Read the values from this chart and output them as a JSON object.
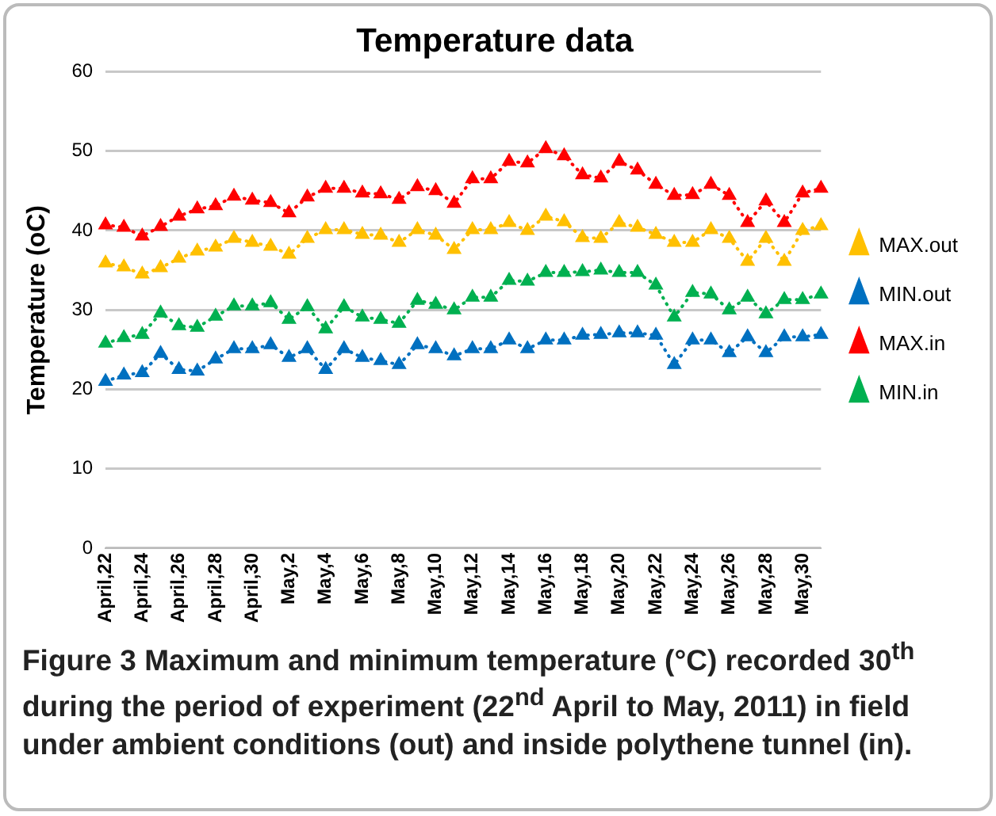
{
  "chart_data": {
    "type": "line",
    "title": "Temperature data",
    "ylabel": "Temperature (oC)",
    "categories": [
      "April,22",
      null,
      "April,24",
      null,
      "April,26",
      null,
      "April,28",
      null,
      "April,30",
      null,
      "May,2",
      null,
      "May,4",
      null,
      "May,6",
      null,
      "May,8",
      null,
      "May,10",
      null,
      "May,12",
      null,
      "May,14",
      null,
      "May,16",
      null,
      "May,18",
      null,
      "May,20",
      null,
      "May,22",
      null,
      "May,24",
      null,
      "May,26",
      null,
      "May,28",
      null,
      "May,30",
      null
    ],
    "series": [
      {
        "name": "MAX.out",
        "color": "#ffc000",
        "values": [
          35.9,
          35.4,
          34.5,
          35.3,
          36.5,
          37.4,
          37.9,
          39,
          38.5,
          38,
          37,
          39,
          40.1,
          40.1,
          39.5,
          39.4,
          38.5,
          40.1,
          39.4,
          37.6,
          40.1,
          40.1,
          41,
          40,
          41.8,
          41.1,
          39.1,
          39,
          41,
          40.4,
          39.5,
          38.5,
          38.5,
          40.1,
          39,
          36.1,
          39,
          36.1,
          40,
          40.6
        ]
      },
      {
        "name": "MIN.out",
        "color": "#0070c0",
        "values": [
          21,
          21.8,
          22.1,
          24.5,
          22.5,
          22.3,
          23.8,
          25.1,
          25.1,
          25.6,
          24,
          25.1,
          22.5,
          25.1,
          24,
          23.6,
          23.1,
          25.6,
          25.1,
          24.2,
          25.1,
          25.1,
          26.2,
          25.1,
          26.2,
          26.2,
          26.8,
          26.9,
          27.1,
          27.1,
          26.8,
          23.1,
          26.2,
          26.2,
          24.6,
          26.6,
          24.6,
          26.6,
          26.6,
          26.9
        ]
      },
      {
        "name": "MAX.in",
        "color": "#ff0000",
        "values": [
          40.7,
          40.4,
          39.3,
          40.5,
          41.8,
          42.7,
          43.1,
          44.3,
          43.8,
          43.5,
          42.2,
          44.2,
          45.3,
          45.3,
          44.7,
          44.6,
          43.9,
          45.5,
          45,
          43.4,
          46.5,
          46.5,
          48.7,
          48.5,
          50.3,
          49.4,
          47,
          46.6,
          48.7,
          47.6,
          45.8,
          44.4,
          44.5,
          45.8,
          44.4,
          41,
          43.7,
          41,
          44.7,
          45.3
        ]
      },
      {
        "name": "MIN.in",
        "color": "#00b050",
        "values": [
          25.8,
          26.5,
          26.9,
          29.6,
          28,
          27.8,
          29.2,
          30.5,
          30.5,
          30.9,
          28.8,
          30.4,
          27.6,
          30.4,
          29.1,
          28.8,
          28.3,
          31.2,
          30.7,
          30,
          31.6,
          31.6,
          33.7,
          33.6,
          34.7,
          34.7,
          34.8,
          35,
          34.7,
          34.7,
          33.1,
          29.1,
          32.2,
          32,
          30,
          31.6,
          29.5,
          31.3,
          31.3,
          32
        ]
      }
    ],
    "ylim": [
      0,
      60
    ],
    "yticks": [
      0,
      10,
      20,
      30,
      40,
      50,
      60
    ],
    "grid": "y",
    "legend": "right",
    "marker": "triangle",
    "line_style": "dotted",
    "annotations": [
      "Figure 3 Maximum and minimum temperature (°C) recorded 30$^{th}$ during the period of experiment (22$^{nd}$ April to May, 2011) in field under ambient conditions (out) and inside polythene tunnel (in)."
    ]
  }
}
